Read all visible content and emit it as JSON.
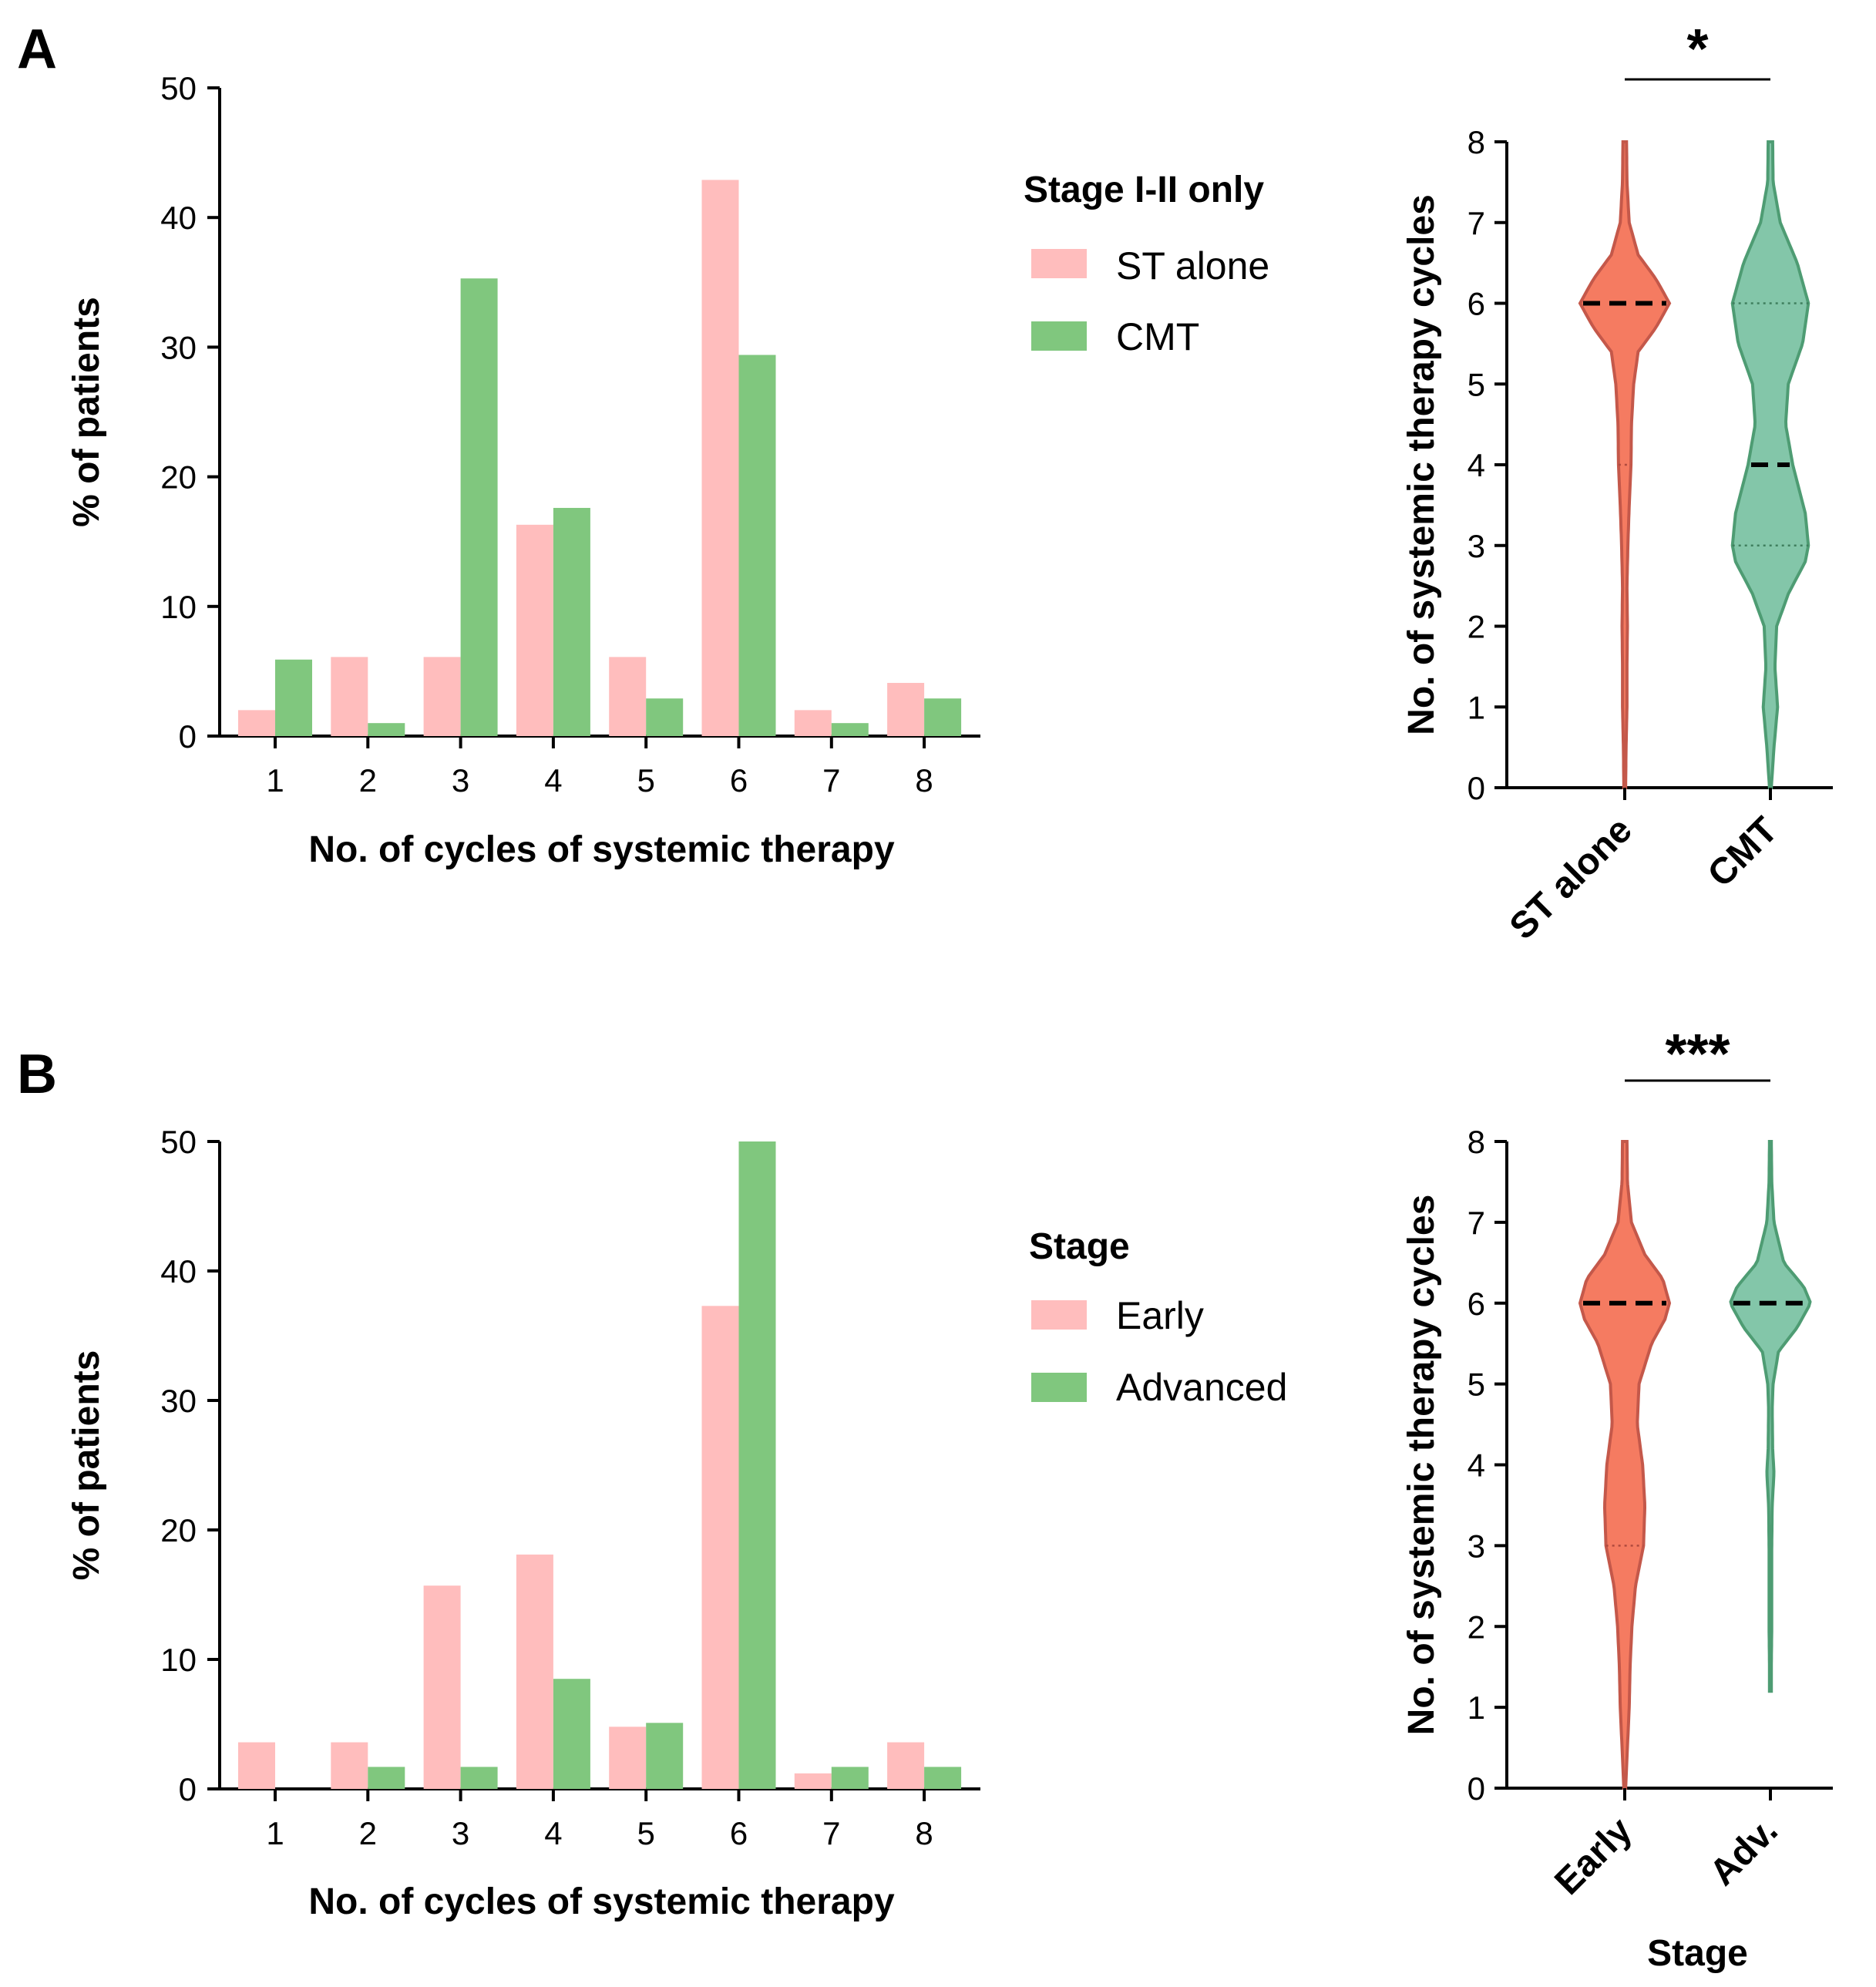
{
  "colors": {
    "pink": "#FFBDBD",
    "green": "#80C77E",
    "violin_red": "#F47458",
    "violin_red_edge": "#C4584A",
    "violin_green": "#7CC3A4",
    "violin_green_edge": "#4E9C73",
    "median": "#000000",
    "quartile_red": "#B04A3E",
    "quartile_green": "#3F7F5E"
  },
  "chart_data": [
    {
      "id": "A-bar",
      "panel": "A",
      "type": "bar",
      "title": "",
      "xlabel": "No. of cycles of systemic therapy",
      "ylabel": "% of patients",
      "ylim": [
        0,
        50
      ],
      "yticks": [
        "0",
        "10",
        "20",
        "30",
        "40",
        "50"
      ],
      "categories": [
        "1",
        "2",
        "3",
        "4",
        "5",
        "6",
        "7",
        "8"
      ],
      "legend_title": "Stage I-II only",
      "series": [
        {
          "name": "ST alone",
          "color": "#FFBDBD",
          "values": [
            2,
            6.1,
            6.1,
            16.3,
            6.1,
            42.9,
            2,
            4.1
          ]
        },
        {
          "name": "CMT",
          "color": "#80C77E",
          "values": [
            5.9,
            1,
            35.3,
            17.6,
            2.9,
            29.4,
            1,
            2.9
          ]
        }
      ]
    },
    {
      "id": "A-violin",
      "panel": "A",
      "type": "violin",
      "ylabel": "No. of systemic therapy cycles",
      "xlabel": "",
      "ylim": [
        0,
        8
      ],
      "yticks": [
        "0",
        "1",
        "2",
        "3",
        "4",
        "5",
        "6",
        "7",
        "8"
      ],
      "significance": "*",
      "groups": [
        {
          "name": "ST alone",
          "color": "#F47458",
          "median": 6,
          "q1": 4,
          "q3": 6,
          "density": [
            [
              0,
              0.02
            ],
            [
              0.5,
              0.03
            ],
            [
              1,
              0.05
            ],
            [
              1.5,
              0.05
            ],
            [
              2,
              0.06
            ],
            [
              2.5,
              0.05
            ],
            [
              3,
              0.07
            ],
            [
              3.5,
              0.1
            ],
            [
              4,
              0.14
            ],
            [
              4.5,
              0.15
            ],
            [
              5,
              0.2
            ],
            [
              5.4,
              0.3
            ],
            [
              5.7,
              0.7
            ],
            [
              6,
              1.0
            ],
            [
              6.3,
              0.7
            ],
            [
              6.6,
              0.3
            ],
            [
              7,
              0.1
            ],
            [
              7.5,
              0.05
            ],
            [
              8,
              0.04
            ]
          ]
        },
        {
          "name": "CMT",
          "color": "#7CC3A4",
          "median": 4,
          "q1": 3,
          "q3": 6,
          "density": [
            [
              0,
              0.02
            ],
            [
              0.5,
              0.08
            ],
            [
              1,
              0.16
            ],
            [
              1.5,
              0.1
            ],
            [
              2,
              0.14
            ],
            [
              2.4,
              0.4
            ],
            [
              2.8,
              0.78
            ],
            [
              3,
              0.85
            ],
            [
              3.4,
              0.78
            ],
            [
              4,
              0.5
            ],
            [
              4.5,
              0.34
            ],
            [
              5,
              0.4
            ],
            [
              5.5,
              0.72
            ],
            [
              6,
              0.85
            ],
            [
              6.5,
              0.6
            ],
            [
              7,
              0.22
            ],
            [
              7.5,
              0.06
            ],
            [
              8,
              0.05
            ]
          ]
        }
      ]
    },
    {
      "id": "B-bar",
      "panel": "B",
      "type": "bar",
      "title": "",
      "xlabel": "No. of cycles of systemic therapy",
      "ylabel": "% of patients",
      "ylim": [
        0,
        50
      ],
      "yticks": [
        "0",
        "10",
        "20",
        "30",
        "40",
        "50"
      ],
      "categories": [
        "1",
        "2",
        "3",
        "4",
        "5",
        "6",
        "7",
        "8"
      ],
      "legend_title": "Stage",
      "series": [
        {
          "name": "Early",
          "color": "#FFBDBD",
          "values": [
            3.6,
            3.6,
            15.7,
            18.1,
            4.8,
            37.3,
            1.2,
            3.6
          ]
        },
        {
          "name": "Advanced",
          "color": "#80C77E",
          "values": [
            0,
            1.7,
            1.7,
            8.5,
            5.1,
            50,
            1.7,
            1.7
          ]
        }
      ]
    },
    {
      "id": "B-violin",
      "panel": "B",
      "type": "violin",
      "ylabel": "No. of systemic therapy cycles",
      "xlabel": "Stage",
      "ylim": [
        0,
        8
      ],
      "yticks": [
        "0",
        "1",
        "2",
        "3",
        "4",
        "5",
        "6",
        "7",
        "8"
      ],
      "significance": "***",
      "groups": [
        {
          "name": "Early",
          "color": "#F47458",
          "median": 6,
          "q1": 3,
          "q3": 6,
          "density": [
            [
              0,
              0.02
            ],
            [
              0.5,
              0.06
            ],
            [
              1,
              0.1
            ],
            [
              1.5,
              0.12
            ],
            [
              2,
              0.16
            ],
            [
              2.5,
              0.24
            ],
            [
              3,
              0.42
            ],
            [
              3.5,
              0.45
            ],
            [
              4,
              0.4
            ],
            [
              4.5,
              0.28
            ],
            [
              5,
              0.32
            ],
            [
              5.5,
              0.6
            ],
            [
              5.8,
              0.9
            ],
            [
              6,
              1.0
            ],
            [
              6.3,
              0.85
            ],
            [
              6.6,
              0.45
            ],
            [
              7,
              0.15
            ],
            [
              7.5,
              0.06
            ],
            [
              8,
              0.05
            ]
          ]
        },
        {
          "name": "Adv.",
          "color": "#7CC3A4",
          "median": 6,
          "q1": 6,
          "q3": 6,
          "density": [
            [
              1.2,
              0.02
            ],
            [
              1.5,
              0.02
            ],
            [
              2,
              0.03
            ],
            [
              2.5,
              0.03
            ],
            [
              3,
              0.03
            ],
            [
              3.5,
              0.04
            ],
            [
              3.9,
              0.08
            ],
            [
              4.2,
              0.05
            ],
            [
              4.7,
              0.04
            ],
            [
              5,
              0.06
            ],
            [
              5.4,
              0.18
            ],
            [
              5.7,
              0.6
            ],
            [
              6,
              0.9
            ],
            [
              6.2,
              0.75
            ],
            [
              6.5,
              0.3
            ],
            [
              7,
              0.08
            ],
            [
              7.5,
              0.03
            ],
            [
              8,
              0.02
            ]
          ]
        }
      ]
    }
  ],
  "panels": {
    "A": {
      "letter": "A"
    },
    "B": {
      "letter": "B"
    }
  }
}
